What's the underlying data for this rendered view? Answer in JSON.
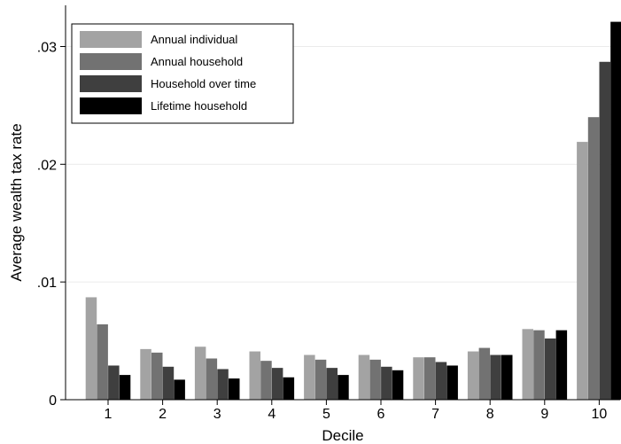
{
  "chart_data": {
    "type": "bar",
    "xlabel": "Decile",
    "ylabel": "Average wealth tax rate",
    "ylim": [
      0,
      0.0335
    ],
    "yticks": [
      {
        "value": 0,
        "label": "0"
      },
      {
        "value": 0.01,
        "label": ".01"
      },
      {
        "value": 0.02,
        "label": ".02"
      },
      {
        "value": 0.03,
        "label": ".03"
      }
    ],
    "grid": "horizontal",
    "legend_position": "top-left",
    "categories": [
      "1",
      "2",
      "3",
      "4",
      "5",
      "6",
      "7",
      "8",
      "9",
      "10"
    ],
    "series": [
      {
        "name": "Annual individual",
        "color": "#a3a3a3",
        "values": [
          0.0087,
          0.0043,
          0.0045,
          0.0041,
          0.0038,
          0.0038,
          0.0036,
          0.0041,
          0.006,
          0.0219
        ]
      },
      {
        "name": "Annual household",
        "color": "#727272",
        "values": [
          0.0064,
          0.004,
          0.0035,
          0.0033,
          0.0034,
          0.0034,
          0.0036,
          0.0044,
          0.0059,
          0.024
        ]
      },
      {
        "name": "Household over time",
        "color": "#3f3f3f",
        "values": [
          0.0029,
          0.0028,
          0.0026,
          0.0027,
          0.0027,
          0.0028,
          0.0032,
          0.0038,
          0.0052,
          0.0287
        ]
      },
      {
        "name": "Lifetime household",
        "color": "#000000",
        "values": [
          0.0021,
          0.0017,
          0.0018,
          0.0019,
          0.0021,
          0.0025,
          0.0029,
          0.0038,
          0.0059,
          0.0321
        ]
      }
    ]
  }
}
